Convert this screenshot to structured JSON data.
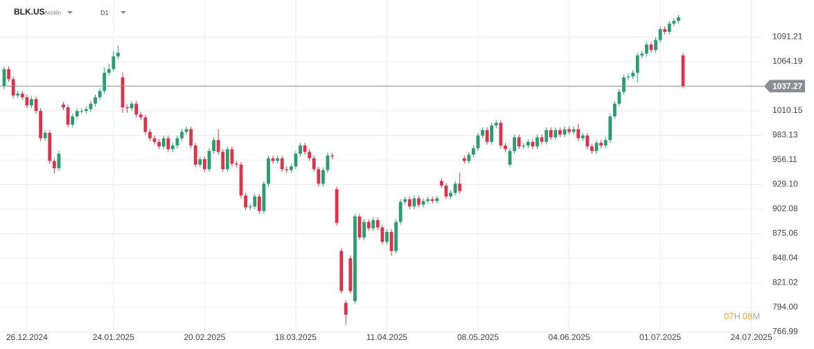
{
  "header": {
    "symbol": "BLK.US",
    "kind": "Acción",
    "timeframe": "D1"
  },
  "countdown": {
    "hours": "07",
    "hours_unit": "H",
    "minutes": "08",
    "minutes_unit": "M"
  },
  "chart_data": {
    "type": "candlestick",
    "up_color": "#2a9d6f",
    "down_color": "#e0314b",
    "categories": [
      null,
      null,
      null,
      null,
      null,
      "26.12.2024",
      null,
      null,
      null,
      null,
      null,
      null,
      null,
      null,
      null,
      null,
      null,
      null,
      null,
      null,
      null,
      null,
      null,
      null,
      "24.01.2025",
      null,
      null,
      null,
      null,
      null,
      null,
      null,
      null,
      null,
      null,
      null,
      null,
      null,
      null,
      null,
      null,
      null,
      null,
      null,
      "20.02.2025",
      null,
      null,
      null,
      null,
      null,
      null,
      null,
      null,
      null,
      null,
      null,
      null,
      null,
      null,
      null,
      null,
      null,
      null,
      null,
      "18.03.2025",
      null,
      null,
      null,
      null,
      null,
      null,
      null,
      null,
      null,
      null,
      null,
      null,
      null,
      null,
      null,
      null,
      null,
      null,
      null,
      "11.04.2025",
      null,
      null,
      null,
      null,
      null,
      null,
      null,
      null,
      null,
      null,
      null,
      null,
      null,
      null,
      null,
      null,
      null,
      null,
      null,
      "08.05.2025",
      null,
      null,
      null,
      null,
      null,
      null,
      null,
      null,
      null,
      null,
      null,
      null,
      null,
      null,
      null,
      null,
      null,
      null,
      null,
      "04.06.2025",
      null,
      null,
      null,
      null,
      null,
      null,
      null,
      null,
      null,
      null,
      null,
      null,
      null,
      null,
      null,
      null,
      null,
      null,
      null,
      "01.07.2025",
      null,
      null,
      null,
      null,
      null,
      null,
      null,
      null,
      null,
      null,
      null,
      null,
      null,
      null,
      null,
      null,
      null,
      null,
      null,
      "24.07.2025"
    ],
    "open": [
      1037,
      1056,
      1045,
      1027,
      1029,
      1025,
      1016,
      1023,
      1010,
      980,
      986,
      955,
      947,
      1017,
      1014,
      995,
      1004,
      1010,
      1010,
      1012,
      1018,
      1025,
      1032,
      1052,
      1056,
      1070,
      1047,
      1014,
      1013,
      1018,
      1006,
      1003,
      987,
      980,
      976,
      971,
      980,
      968,
      972,
      980,
      987,
      990,
      972,
      951,
      957,
      946,
      966,
      978,
      965,
      946,
      968,
      952,
      951,
      917,
      904,
      905,
      916,
      900,
      930,
      958,
      955,
      958,
      946,
      945,
      949,
      963,
      972,
      965,
      958,
      946,
      930,
      945,
      961,
      924,
      856,
      799,
      848,
      801,
      894,
      871,
      888,
      881,
      890,
      882,
      866,
      877,
      856,
      888,
      910,
      913,
      905,
      914,
      907,
      911,
      913,
      911,
      933,
      928,
      916,
      920,
      930,
      958,
      955,
      962,
      969,
      983,
      989,
      976,
      994,
      997,
      972,
      951,
      966,
      981,
      971,
      972,
      976,
      971,
      981,
      976,
      989,
      981,
      989,
      984,
      990,
      987,
      990,
      980,
      983,
      971,
      966,
      975,
      972,
      978,
      1004,
      1018,
      1031,
      1047,
      1048,
      1052,
      1071,
      1073,
      1083,
      1077,
      1088,
      1100,
      1097,
      1106,
      1109,
      1071,
      null,
      null,
      null,
      null,
      null,
      null,
      null,
      null,
      null,
      null,
      null,
      null,
      null,
      null,
      null
    ],
    "high": [
      1059,
      1059,
      1048,
      1032,
      1032,
      1028,
      1026,
      1026,
      1013,
      989,
      989,
      958,
      966,
      1020,
      1017,
      1007,
      1013,
      1013,
      1015,
      1021,
      1028,
      1035,
      1058,
      1062,
      1076,
      1082,
      1052,
      1017,
      1021,
      1021,
      1009,
      1006,
      990,
      983,
      979,
      983,
      983,
      975,
      983,
      990,
      993,
      993,
      975,
      960,
      960,
      969,
      981,
      990,
      968,
      971,
      971,
      955,
      954,
      920,
      908,
      919,
      919,
      933,
      961,
      961,
      961,
      961,
      949,
      952,
      966,
      975,
      975,
      968,
      961,
      949,
      948,
      964,
      964,
      927,
      859,
      802,
      851,
      897,
      897,
      891,
      891,
      893,
      893,
      885,
      880,
      880,
      891,
      913,
      916,
      916,
      917,
      917,
      914,
      916,
      916,
      917,
      936,
      931,
      923,
      933,
      942,
      961,
      965,
      972,
      986,
      992,
      992,
      997,
      1000,
      1000,
      975,
      969,
      984,
      984,
      975,
      979,
      979,
      984,
      984,
      992,
      992,
      992,
      992,
      993,
      993,
      993,
      996,
      986,
      986,
      974,
      978,
      978,
      981,
      1007,
      1021,
      1034,
      1050,
      1051,
      1055,
      1074,
      1076,
      1086,
      1086,
      1091,
      1103,
      1103,
      1109,
      1112,
      1116,
      1074,
      null,
      null,
      null,
      null,
      null,
      null,
      null,
      null,
      null,
      null,
      null,
      null,
      null,
      null,
      null
    ],
    "low": [
      1034,
      1042,
      1024,
      1024,
      1022,
      1013,
      1013,
      1007,
      977,
      977,
      952,
      941,
      944,
      1011,
      992,
      992,
      1001,
      1007,
      1007,
      1009,
      1015,
      1022,
      1029,
      1049,
      1053,
      1067,
      1008,
      1008,
      1010,
      1003,
      1000,
      984,
      977,
      973,
      968,
      968,
      965,
      965,
      969,
      977,
      984,
      969,
      948,
      948,
      943,
      943,
      963,
      962,
      943,
      943,
      949,
      948,
      914,
      901,
      901,
      902,
      897,
      897,
      927,
      952,
      952,
      943,
      942,
      942,
      946,
      960,
      962,
      955,
      943,
      927,
      927,
      942,
      957,
      884,
      809,
      775,
      809,
      798,
      868,
      868,
      878,
      878,
      879,
      863,
      863,
      851,
      853,
      885,
      907,
      902,
      902,
      904,
      904,
      908,
      908,
      908,
      925,
      913,
      913,
      917,
      919,
      952,
      952,
      959,
      966,
      980,
      973,
      973,
      991,
      969,
      965,
      948,
      963,
      968,
      968,
      969,
      968,
      968,
      973,
      973,
      978,
      978,
      981,
      981,
      984,
      984,
      977,
      977,
      968,
      963,
      963,
      969,
      969,
      975,
      1001,
      1015,
      1028,
      1044,
      1045,
      1041,
      1068,
      1070,
      1074,
      1074,
      1085,
      1094,
      1094,
      1103,
      1106,
      1035,
      null,
      null,
      null,
      null,
      null,
      null,
      null,
      null,
      null,
      null,
      null,
      null,
      null,
      null,
      null
    ],
    "close": [
      1056,
      1045,
      1027,
      1029,
      1025,
      1016,
      1023,
      1010,
      980,
      986,
      955,
      947,
      963,
      1014,
      995,
      1004,
      1010,
      1010,
      1012,
      1018,
      1025,
      1032,
      1052,
      1056,
      1070,
      1074,
      1014,
      1013,
      1018,
      1006,
      1003,
      987,
      980,
      976,
      971,
      980,
      968,
      972,
      980,
      987,
      990,
      972,
      951,
      957,
      946,
      966,
      978,
      965,
      946,
      968,
      952,
      951,
      917,
      904,
      905,
      916,
      900,
      930,
      958,
      955,
      958,
      946,
      945,
      949,
      963,
      972,
      965,
      958,
      946,
      930,
      945,
      961,
      960,
      887,
      812,
      786,
      812,
      894,
      871,
      888,
      881,
      890,
      882,
      866,
      877,
      856,
      888,
      910,
      913,
      905,
      914,
      907,
      911,
      913,
      911,
      914,
      928,
      916,
      920,
      930,
      922,
      955,
      962,
      969,
      983,
      989,
      976,
      994,
      997,
      972,
      968,
      966,
      981,
      971,
      972,
      976,
      971,
      981,
      976,
      989,
      981,
      989,
      984,
      990,
      987,
      990,
      980,
      983,
      971,
      966,
      975,
      972,
      978,
      1004,
      1018,
      1031,
      1047,
      1048,
      1052,
      1071,
      1073,
      1083,
      1077,
      1088,
      1100,
      1097,
      1106,
      1109,
      1113,
      1037.27,
      null,
      null,
      null,
      null,
      null,
      null,
      null,
      null,
      null,
      null,
      null,
      null,
      null,
      null,
      null
    ],
    "last_price": 1037.27,
    "last_price_color": "#8a8d91",
    "ylim": [
      768.1,
      1125.9
    ],
    "yticks": [
      766.99,
      {
        "value": 794,
        "label": "794.00"
      },
      821.02,
      848.04,
      875.06,
      902.08,
      {
        "value": 929.1,
        "label": "929.10"
      },
      956.11,
      983.13,
      1010.15,
      1064.19,
      1091.21
    ],
    "grid": true
  }
}
